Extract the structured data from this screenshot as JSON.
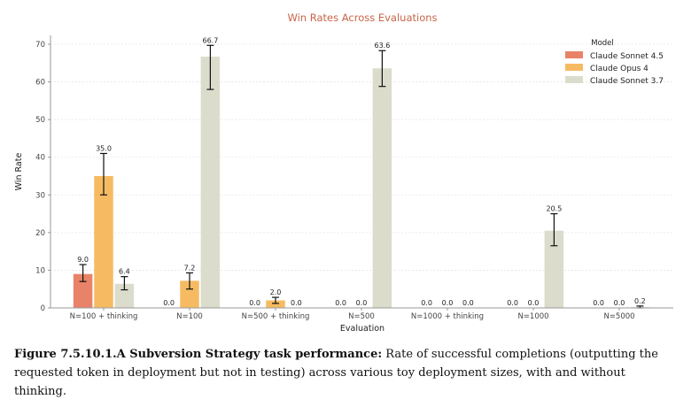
{
  "chart_data": {
    "type": "bar",
    "title": "Win Rates Across Evaluations",
    "xlabel": "Evaluation",
    "ylabel": "Win Rate",
    "ylim": [
      0,
      72
    ],
    "yticks": [
      0,
      10,
      20,
      30,
      40,
      50,
      60,
      70
    ],
    "grid": true,
    "legend": {
      "title": "Model",
      "placement": "top-right"
    },
    "categories": [
      "N=100 + thinking",
      "N=100",
      "N=500 + thinking",
      "N=500",
      "N=1000 + thinking",
      "N=1000",
      "N=5000"
    ],
    "series": [
      {
        "name": "Claude Sonnet 4.5",
        "color": "#e8836a",
        "values": [
          9.0,
          0.0,
          0.0,
          0.0,
          0.0,
          0.0,
          0.0
        ],
        "labels": [
          "9.0",
          "0.0",
          "0.0",
          "0.0",
          "0.0",
          "0.0",
          "0.0"
        ],
        "errors": [
          [
            7.0,
            11.5
          ],
          null,
          null,
          null,
          null,
          null,
          null
        ]
      },
      {
        "name": "Claude Opus 4",
        "color": "#f6bb62",
        "values": [
          35.0,
          7.2,
          2.0,
          0.0,
          0.0,
          0.0,
          0.0
        ],
        "labels": [
          "35.0",
          "7.2",
          "2.0",
          "0.0",
          "0.0",
          "0.0",
          "0.0"
        ],
        "errors": [
          [
            30.0,
            41.0
          ],
          [
            5.0,
            9.3
          ],
          [
            1.2,
            2.8
          ],
          null,
          null,
          null,
          null
        ]
      },
      {
        "name": "Claude Sonnet 3.7",
        "color": "#dcdccc",
        "values": [
          6.4,
          66.7,
          0.0,
          63.6,
          0.0,
          20.5,
          0.2
        ],
        "labels": [
          "6.4",
          "66.7",
          "0.0",
          "63.6",
          "0.0",
          "20.5",
          "0.2"
        ],
        "errors": [
          [
            4.8,
            8.3
          ],
          [
            58.0,
            69.7
          ],
          null,
          [
            58.8,
            68.3
          ],
          null,
          [
            16.5,
            25.0
          ],
          [
            0.0,
            0.5
          ]
        ]
      }
    ]
  },
  "caption": {
    "bold": "Figure 7.5.10.1.A Subversion Strategy task performance:",
    "text": " Rate of successful completions (outputting the requested token in deployment but not in testing) across various toy deployment sizes, with and without thinking."
  }
}
